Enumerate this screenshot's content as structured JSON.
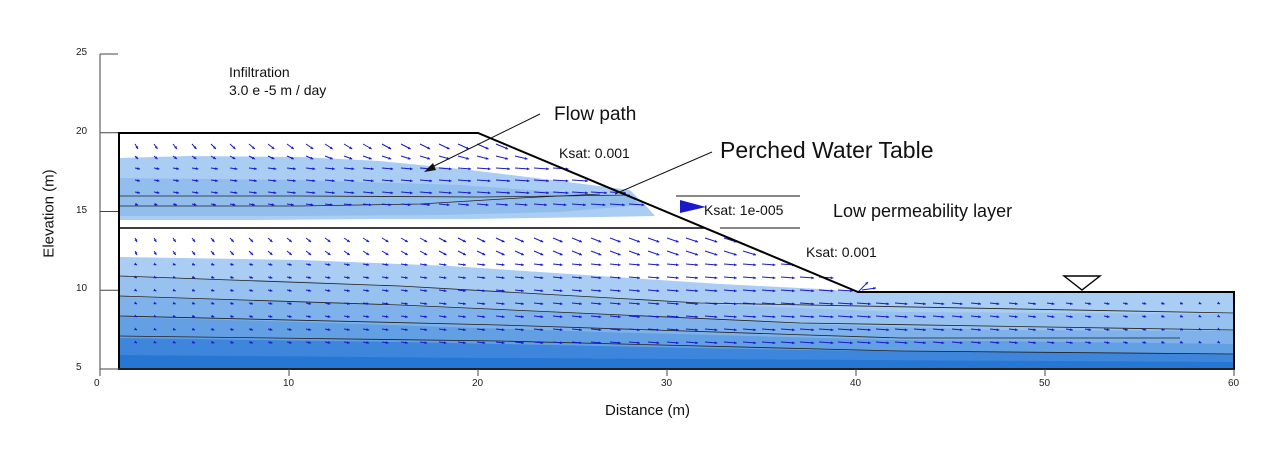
{
  "axes": {
    "xlabel": "Distance (m)",
    "ylabel": "Elevation (m)",
    "xlim": [
      0,
      60
    ],
    "ylim": [
      5,
      25
    ],
    "xticks": [
      "0",
      "10",
      "20",
      "30",
      "40",
      "50",
      "60"
    ],
    "yticks": [
      "5",
      "10",
      "15",
      "20",
      "25"
    ]
  },
  "annotations": {
    "infiltration_line1": "Infiltration",
    "infiltration_line2": "3.0 e -5 m / day",
    "flow_path": "Flow path",
    "perched_water_table": "Perched Water Table",
    "ksat_top": "Ksat: 0.001",
    "ksat_middle": "Ksat: 1e-005",
    "low_permeability": "Low permeability layer",
    "ksat_lower": "Ksat: 0.001"
  },
  "colors": {
    "outline": "#000000",
    "vector": "#1a1acc",
    "water_light": "#a9cdf3",
    "water_mid": "#7fb2ea",
    "water_deep": "#3e86db",
    "water_deepest": "#2676d4"
  }
}
